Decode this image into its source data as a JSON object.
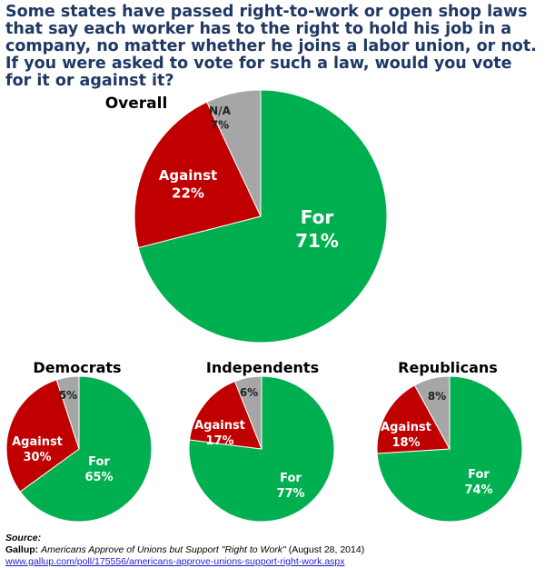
{
  "question": "Some states have passed right-to-work or open shop laws that say each worker has to the right to hold his job in a company, no matter whether he joins a labor union, or not. If you were asked to vote for such a law, would you vote for it or against it?",
  "colors": {
    "for": "#00b050",
    "against": "#c00000",
    "na": "#a6a6a6",
    "title": "#1f3864"
  },
  "chart_data": [
    {
      "type": "pie",
      "title": "Overall",
      "slices": [
        {
          "label": "For",
          "value": 71,
          "display": "71%",
          "color": "#00b050"
        },
        {
          "label": "Against",
          "value": 22,
          "display": "22%",
          "color": "#c00000"
        },
        {
          "label": "N/A",
          "value": 7,
          "display": "7%",
          "color": "#a6a6a6"
        }
      ]
    },
    {
      "type": "pie",
      "title": "Democrats",
      "slices": [
        {
          "label": "For",
          "value": 65,
          "display": "65%",
          "color": "#00b050"
        },
        {
          "label": "Against",
          "value": 30,
          "display": "30%",
          "color": "#c00000"
        },
        {
          "label": "",
          "value": 5,
          "display": "5%",
          "color": "#a6a6a6"
        }
      ]
    },
    {
      "type": "pie",
      "title": "Independents",
      "slices": [
        {
          "label": "For",
          "value": 77,
          "display": "77%",
          "color": "#00b050"
        },
        {
          "label": "Against",
          "value": 17,
          "display": "17%",
          "color": "#c00000"
        },
        {
          "label": "",
          "value": 6,
          "display": "6%",
          "color": "#a6a6a6"
        }
      ]
    },
    {
      "type": "pie",
      "title": "Republicans",
      "slices": [
        {
          "label": "For",
          "value": 74,
          "display": "74%",
          "color": "#00b050"
        },
        {
          "label": "Against",
          "value": 18,
          "display": "18%",
          "color": "#c00000"
        },
        {
          "label": "",
          "value": 8,
          "display": "8%",
          "color": "#a6a6a6"
        }
      ]
    }
  ],
  "source": {
    "heading": "Source:",
    "publisher": "Gallup:",
    "title": "Americans Approve of Unions but Support \"Right to Work\"",
    "date": "(August 28, 2014)",
    "url": "www.gallup.com/poll/175556/americans-approve-unions-support-right-work.aspx"
  }
}
